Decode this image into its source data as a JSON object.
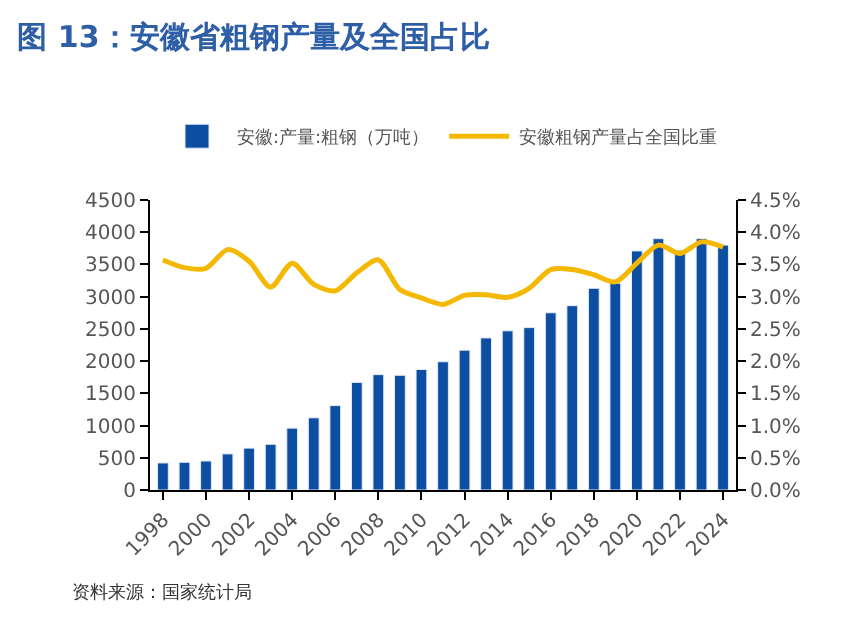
{
  "chart_data": {
    "type": "bar",
    "title": "图 13：安徽省粗钢产量及全国占比",
    "categories": [
      "1998",
      null,
      "2000",
      null,
      "2002",
      null,
      "2004",
      null,
      "2006",
      null,
      "2008",
      null,
      "2010",
      null,
      "2012",
      null,
      "2014",
      null,
      "2016",
      null,
      "2018",
      null,
      "2020",
      null,
      "2022",
      null,
      "2024"
    ],
    "series": [
      {
        "name": "安徽:产量:粗钢（万吨）",
        "color": "#0b4ea2",
        "values": [
          420,
          430,
          450,
          560,
          650,
          710,
          960,
          1120,
          1310,
          1670,
          1790,
          1780,
          1870,
          1990,
          2170,
          2360,
          2470,
          2520,
          2750,
          2860,
          3130,
          3210,
          3710,
          3900,
          3720,
          3900,
          3800
        ]
      },
      {
        "name": "安徽粗钢产量占全国比重",
        "type": "line",
        "axis": "y2",
        "color": "#f5b800",
        "values": [
          3.57,
          3.45,
          3.44,
          3.73,
          3.55,
          3.15,
          3.52,
          3.19,
          3.09,
          3.37,
          3.57,
          3.11,
          2.98,
          2.88,
          3.02,
          3.03,
          2.99,
          3.13,
          3.42,
          3.42,
          3.34,
          3.23,
          3.52,
          3.8,
          3.67,
          3.85,
          3.77
        ]
      }
    ],
    "ylim": [
      0,
      4500
    ],
    "yticks": [
      0,
      500,
      1000,
      1500,
      2000,
      2500,
      3000,
      3500,
      4000,
      4500
    ],
    "y2lim": [
      0,
      4.5
    ],
    "y2ticks": [
      {
        "value": 0,
        "label": "0.0%"
      },
      {
        "value": 0.5,
        "label": "0.5%"
      },
      {
        "value": 1,
        "label": "1.0%"
      },
      {
        "value": 1.5,
        "label": "1.5%"
      },
      {
        "value": 2,
        "label": "2.0%"
      },
      {
        "value": 2.5,
        "label": "2.5%"
      },
      {
        "value": 3,
        "label": "3.0%"
      },
      {
        "value": 3.5,
        "label": "3.5%"
      },
      {
        "value": 4,
        "label": "4.0%"
      },
      {
        "value": 4.5,
        "label": "4.5%"
      }
    ],
    "legend": "top",
    "marker": "none",
    "line_style": "solid",
    "annotations": [
      "资料来源：国家统计局"
    ]
  }
}
